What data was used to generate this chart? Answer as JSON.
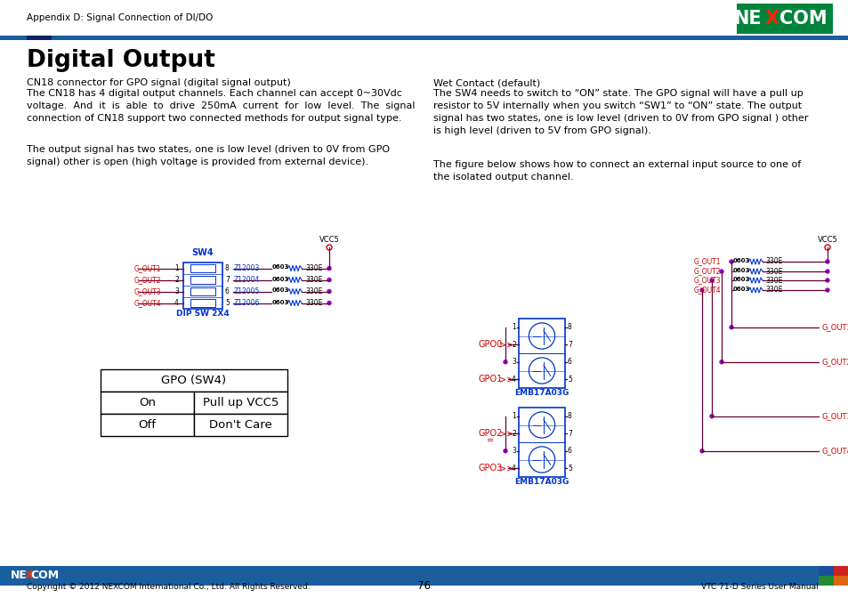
{
  "header_text": "Appendix D: Signal Connection of DI/DO",
  "title": "Digital Output",
  "nexcom_green": "#00843D",
  "accent_bar_color": "#1a5e9e",
  "footer_bar_color": "#1a5e9e",
  "page_num": "76",
  "footer_left": "Copyright © 2012 NEXCOM International Co., Ltd. All Rights Reserved.",
  "footer_right": "VTC 71-D Series User Manual",
  "para1_line1": "CN18 connector for GPO signal (digital signal output)",
  "para1_body": "The CN18 has 4 digital output channels. Each channel can accept 0~30Vdc\nvoltage.  And  it  is  able  to  drive  250mA  current  for  low  level.  The  signal\nconnection of CN18 support two connected methods for output signal type.",
  "para2": "The output signal has two states, one is low level (driven to 0V from GPO\nsignal) other is open (high voltage is provided from external device).",
  "right_para1_line1": "Wet Contact (default)",
  "right_para1_body": "The SW4 needs to switch to “ON” state. The GPO signal will have a pull up\nresistor to 5V internally when you switch “SW1” to “ON” state. The output\nsignal has two states, one is low level (driven to 0V from GPO signal ) other\nis high level (driven to 5V from GPO signal).",
  "right_para2": "The figure below shows how to connect an external input source to one of\nthe isolated output channel.",
  "table_header": "GPO (SW4)",
  "table_rows": [
    [
      "On",
      "Pull up VCC5"
    ],
    [
      "Off",
      "Don't Care"
    ]
  ],
  "wire_color": "#660033",
  "red_color": "#cc0000",
  "blue_color": "#0033cc",
  "purple_color": "#9900cc",
  "dark_red": "#660000"
}
